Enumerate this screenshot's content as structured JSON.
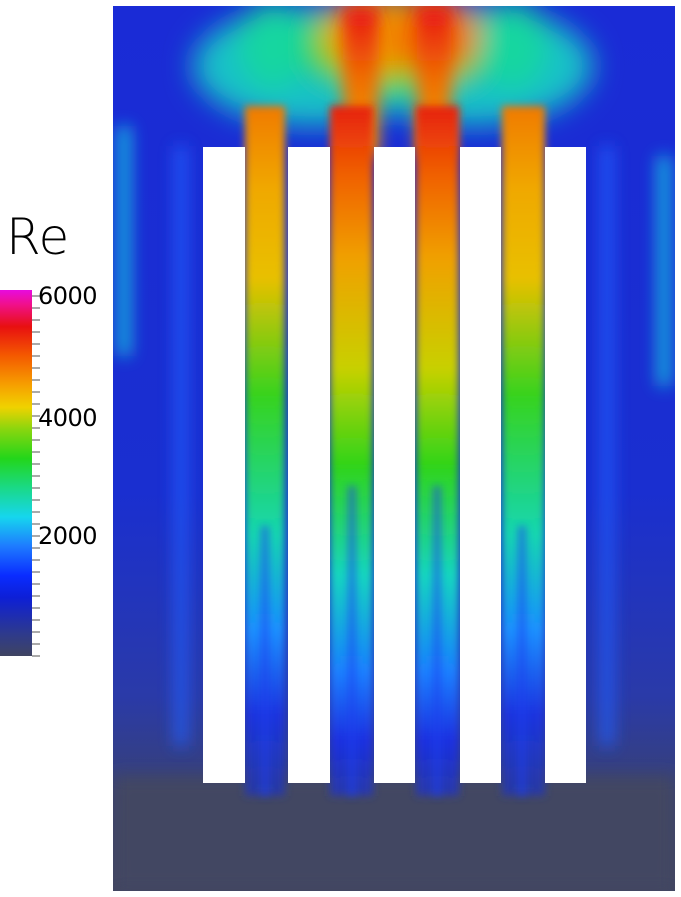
{
  "legend": {
    "title": "Re",
    "tick_labels": [
      "6000",
      "4000",
      "2000"
    ]
  },
  "colors": {
    "background_field": "#1a2fd0",
    "low": "#3f4461",
    "high": "#e81010"
  }
}
